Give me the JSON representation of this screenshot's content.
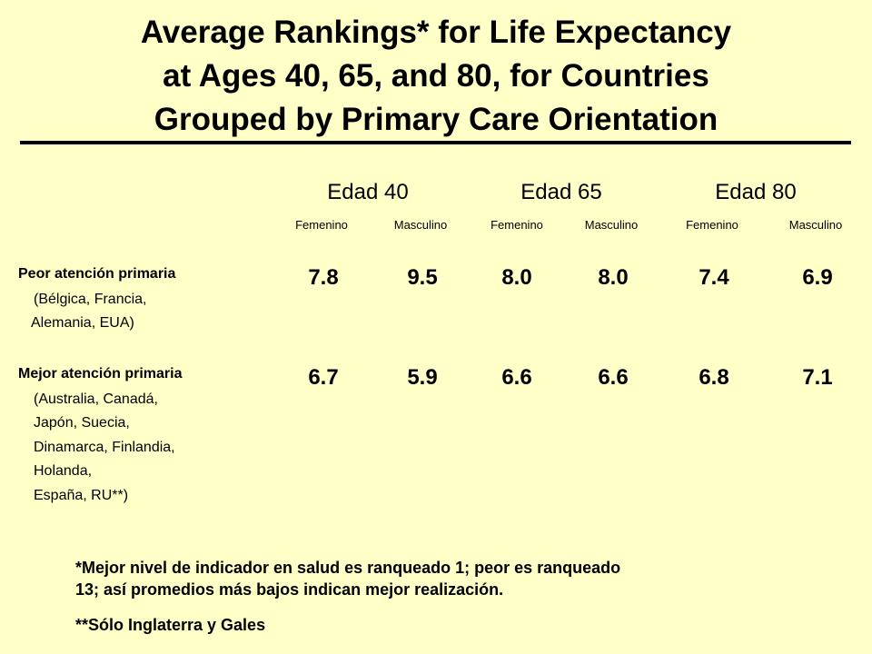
{
  "title": {
    "line1": "Average Rankings* for Life Expectancy",
    "line2": "at Ages 40, 65, and 80, for Countries",
    "line3": "Grouped by Primary Care Orientation"
  },
  "headers": {
    "ages": [
      "Edad 40",
      "Edad 65",
      "Edad 80"
    ],
    "sexes": [
      "Femenino",
      "Masculino",
      "Femenino",
      "Masculino",
      "Femenino",
      "Masculino"
    ]
  },
  "groups": [
    {
      "name": "Peor atención primaria",
      "detail": [
        "(Bélgica, Francia,",
        "Alemania, EUA)"
      ],
      "values": [
        "7.8",
        "9.5",
        "8.0",
        "8.0",
        "7.4",
        "6.9"
      ]
    },
    {
      "name": "Mejor atención primaria",
      "detail": [
        "(Australia, Canadá,",
        "Japón, Suecia,",
        "Dinamarca, Finlandia,",
        "Holanda,",
        "España, RU**)"
      ],
      "values": [
        "6.7",
        "5.9",
        "6.6",
        "6.6",
        "6.8",
        "7.1"
      ]
    }
  ],
  "footnotes": {
    "note1_line1": "*Mejor nivel de indicador en salud es ranqueado 1; peor es ranqueado",
    "note1_line2": "13; así promedios más bajos indican mejor realización.",
    "note2": "**Sólo Inglaterra y Gales"
  },
  "colors": {
    "background": "#ffffc8",
    "text": "#000000"
  }
}
